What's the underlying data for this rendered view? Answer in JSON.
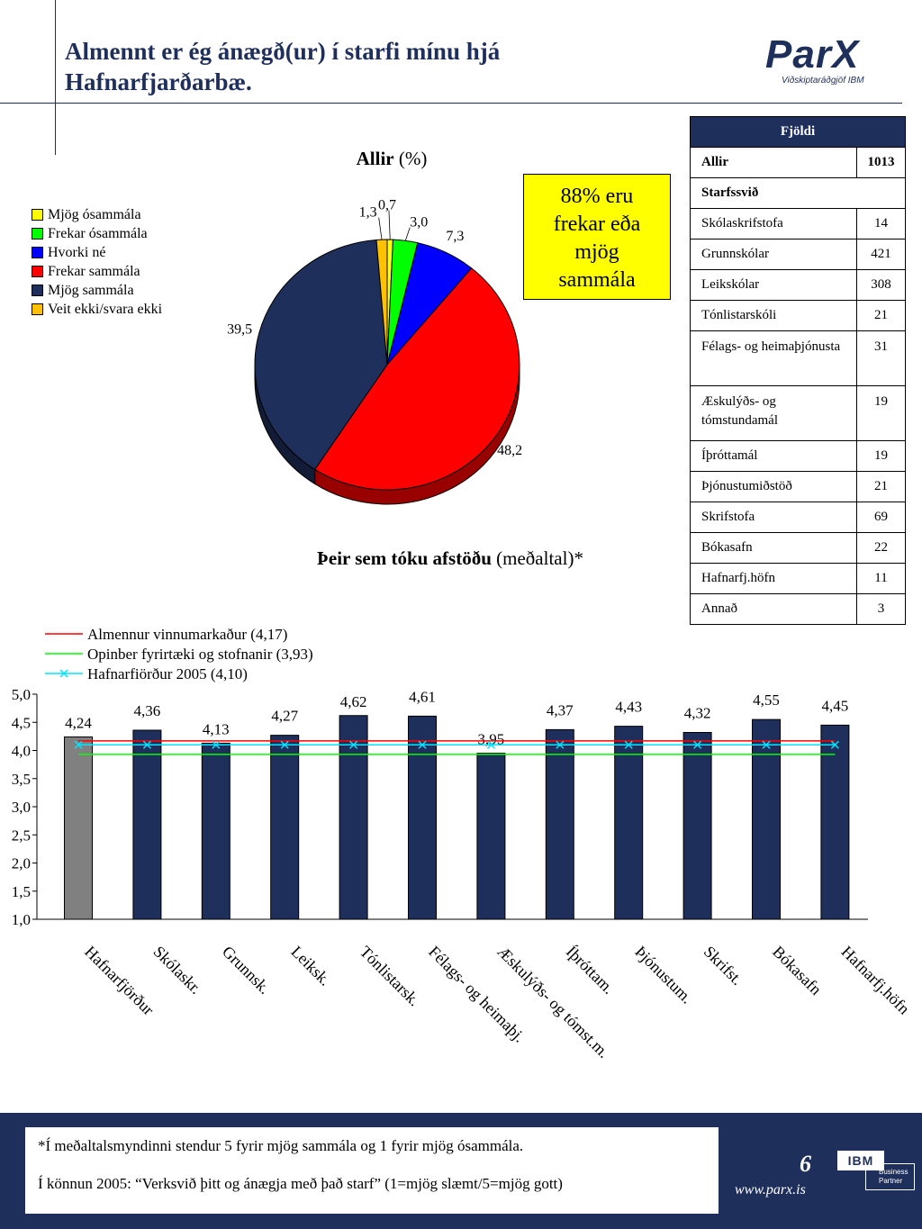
{
  "header": {
    "title_line1": "Almennt er ég ánægð(ur) í starfi mínu hjá",
    "title_line2": "Hafnarfjarðarbæ.",
    "logo_main": "ParX",
    "logo_sub": "Viðskiptaráðgjöf IBM"
  },
  "pie": {
    "title_bold": "Allir",
    "title_rest": " (%)",
    "legend": [
      "Mjög ósammála",
      "Frekar ósammála",
      "Hvorki né",
      "Frekar sammála",
      "Mjög sammála",
      "Veit ekki/svara ekki"
    ]
  },
  "callout": {
    "line1": "88% eru",
    "line2": "frekar eða",
    "line3": "mjög",
    "line4": "sammála"
  },
  "counts": {
    "header": "Fjöldi",
    "allir_label": "Allir",
    "allir_value": "1013",
    "section_label": "Starfssvið",
    "rows": [
      {
        "label": "Skólaskrifstofa",
        "value": "14"
      },
      {
        "label": "Grunnskólar",
        "value": "421"
      },
      {
        "label": "Leikskólar",
        "value": "308"
      },
      {
        "label": "Tónlistarskóli",
        "value": "21"
      },
      {
        "label": "Félags- og heimaþjónusta",
        "value": "31"
      },
      {
        "label": "Æskulýðs- og tómstundamál",
        "value": "19"
      },
      {
        "label": "Íþróttamál",
        "value": "19"
      },
      {
        "label": "Þjónustumiðstöð",
        "value": "21"
      },
      {
        "label": "Skrifstofa",
        "value": "69"
      },
      {
        "label": "Bókasafn",
        "value": "22"
      },
      {
        "label": "Hafnarfj.höfn",
        "value": "11"
      },
      {
        "label": "Annað",
        "value": "3"
      }
    ]
  },
  "bar_section": {
    "title_bold": "Þeir sem tóku afstöðu",
    "title_rest": " (meðaltal)*"
  },
  "chart_data": [
    {
      "type": "pie",
      "title": "Allir (%)",
      "labels": [
        "Mjög ósammála",
        "Frekar ósammála",
        "Hvorki né",
        "Frekar sammála",
        "Mjög sammála",
        "Veit ekki/svara ekki"
      ],
      "values": [
        0.7,
        3.0,
        7.3,
        48.2,
        39.5,
        1.3
      ],
      "value_labels": [
        "0,7",
        "3,0",
        "7,3",
        "48,2",
        "39,5",
        "1,3"
      ],
      "colors": [
        "#ffff00",
        "#00ff00",
        "#0000ff",
        "#ff0000",
        "#1f2f5c",
        "#ffc000"
      ]
    },
    {
      "type": "bar",
      "title": "Þeir sem tóku afstöðu (meðaltal)*",
      "categories": [
        "Hafnarfjörður",
        "Skólaskr.",
        "Grunnsk.",
        "Leiksk.",
        "Tónlistarsk.",
        "Félags- og heimaþj.",
        "Æskulýðs- og tómst.m.",
        "Íþróttam.",
        "Þjónustum.",
        "Skrifst.",
        "Bókasafn",
        "Hafnarfj.höfn"
      ],
      "values": [
        4.24,
        4.36,
        4.13,
        4.27,
        4.62,
        4.61,
        3.95,
        4.37,
        4.43,
        4.32,
        4.55,
        4.45
      ],
      "value_labels": [
        "4,24",
        "4,36",
        "4,13",
        "4,27",
        "4,62",
        "4,61",
        "3,95",
        "4,37",
        "4,43",
        "4,32",
        "4,55",
        "4,45"
      ],
      "bar_colors": [
        "#808080",
        "#1f2f5c",
        "#1f2f5c",
        "#1f2f5c",
        "#1f2f5c",
        "#1f2f5c",
        "#1f2f5c",
        "#1f2f5c",
        "#1f2f5c",
        "#1f2f5c",
        "#1f2f5c",
        "#1f2f5c"
      ],
      "ylim": [
        1.0,
        5.0
      ],
      "yticks": [
        "1,0",
        "1,5",
        "2,0",
        "2,5",
        "3,0",
        "3,5",
        "4,0",
        "4,5",
        "5,0"
      ],
      "reference_lines": [
        {
          "name": "Almennur vinnumarkaður (4,17)",
          "value": 4.17,
          "color": "#ff0000",
          "marker": "none"
        },
        {
          "name": "Opinber fyrirtæki og stofnanir (3,93)",
          "value": 3.93,
          "color": "#00ff00",
          "marker": "none"
        },
        {
          "name": "Hafnarfiörður 2005 (4,10)",
          "value": 4.1,
          "color": "#00e5ff",
          "marker": "x"
        }
      ],
      "legend_position": "top-left"
    }
  ],
  "footer": {
    "note1": "*Í meðaltalsmyndinni stendur 5 fyrir mjög sammála og 1 fyrir mjög ósammála.",
    "note2": "Í könnun 2005: “Verksvið þitt og ánægja með það starf” (1=mjög slæmt/5=mjög gott)",
    "page": "6",
    "url": "www.parx.is",
    "ibm": "IBM",
    "ibm_bp1": "Business",
    "ibm_bp2": "Partner"
  }
}
